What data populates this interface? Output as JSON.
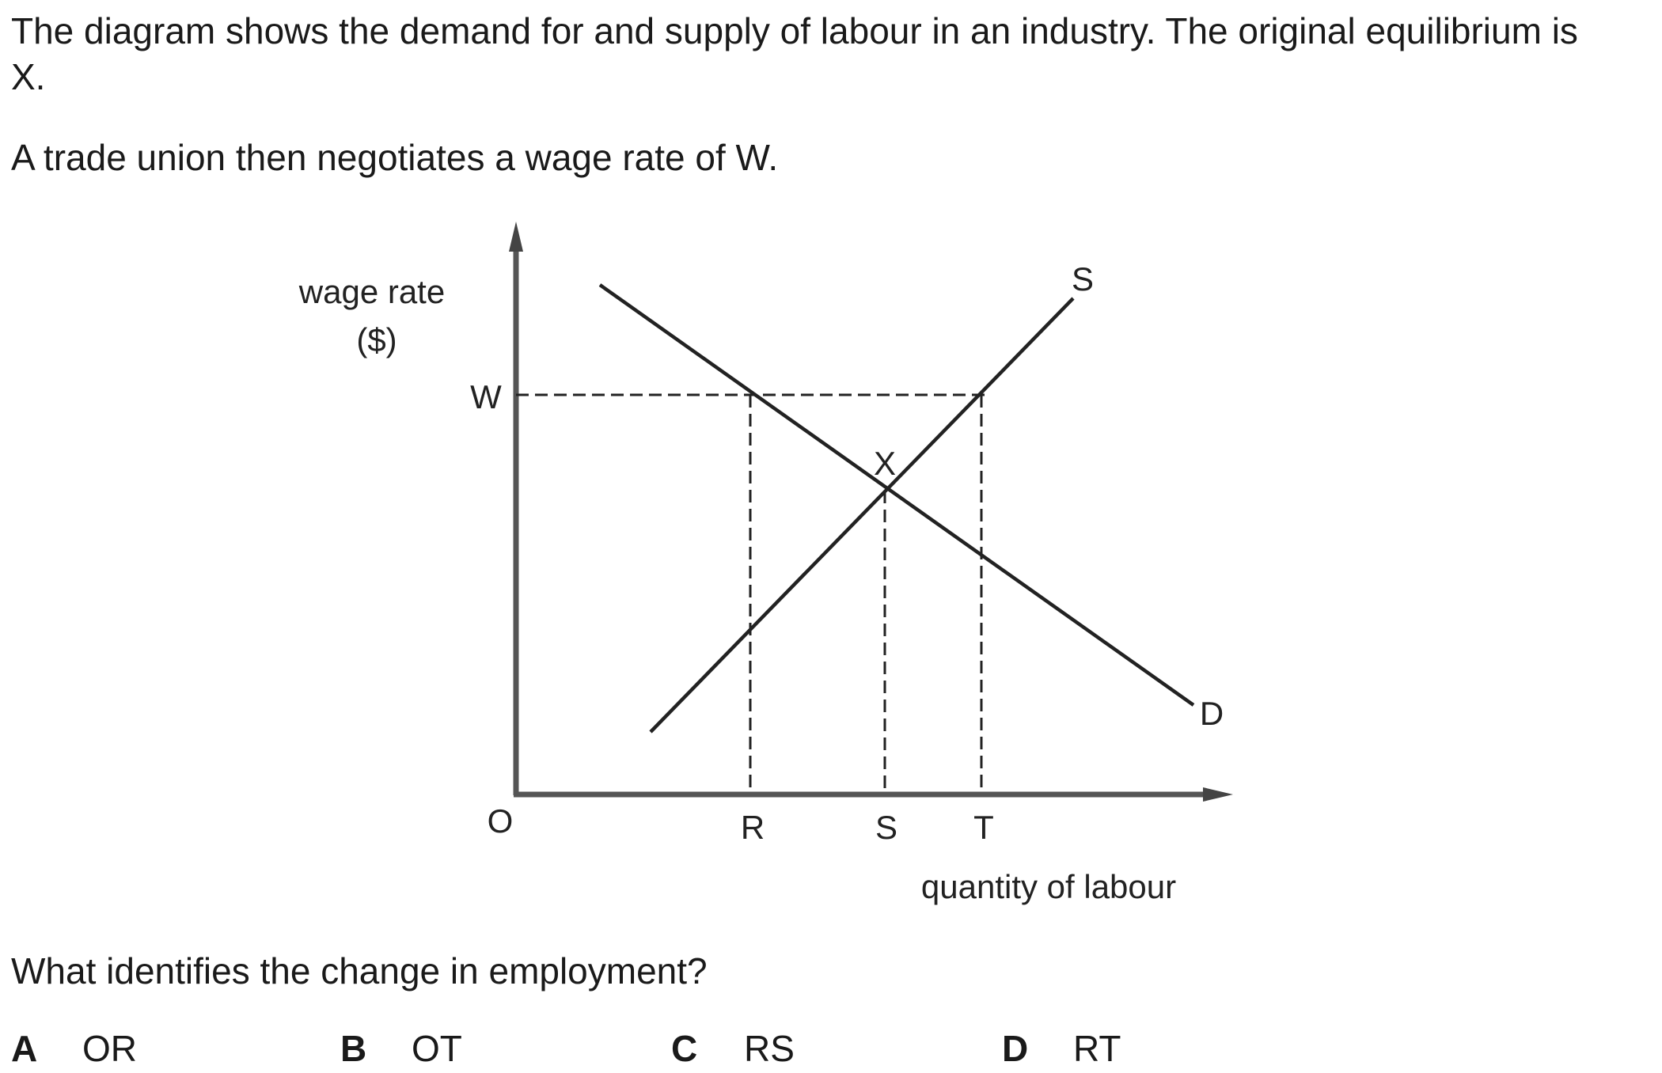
{
  "question": {
    "intro_line": "The diagram shows the demand for and supply of labour in an industry. The original equilibrium is X.",
    "intro_line_2": "A trade union then negotiates a wage rate of W.",
    "prompt": "What identifies the change in employment?"
  },
  "diagram": {
    "y_axis_label_1": "wage rate",
    "y_axis_label_2": "($)",
    "x_axis_label": "quantity of labour",
    "origin_label": "O",
    "wage_label": "W",
    "equilibrium_label": "X",
    "supply_label": "S",
    "demand_label": "D",
    "quantity_labels": [
      "R",
      "S",
      "T"
    ]
  },
  "options": [
    {
      "letter": "A",
      "text": "OR"
    },
    {
      "letter": "B",
      "text": "OT"
    },
    {
      "letter": "C",
      "text": "RS"
    },
    {
      "letter": "D",
      "text": "RT"
    }
  ],
  "colors": {
    "text": "#1a1a1a",
    "lines": "#222222",
    "axes": "#555555"
  }
}
